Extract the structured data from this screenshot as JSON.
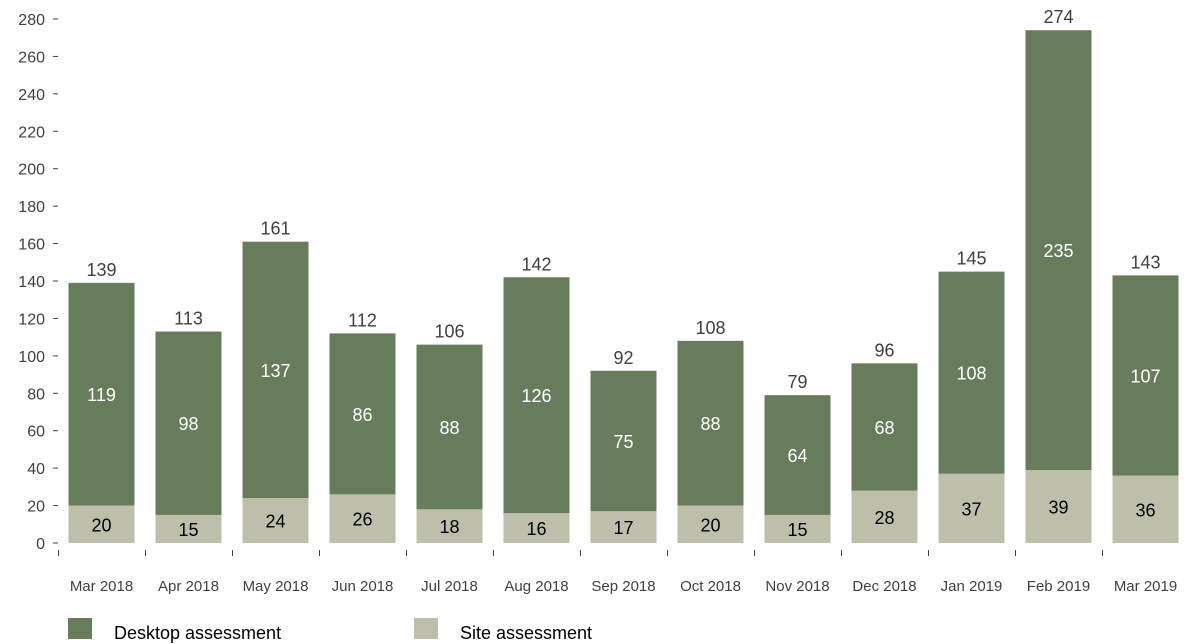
{
  "chart_data": {
    "type": "bar",
    "stacked": true,
    "categories": [
      "Mar 2018",
      "Apr 2018",
      "May 2018",
      "Jun 2018",
      "Jul 2018",
      "Aug 2018",
      "Sep 2018",
      "Oct 2018",
      "Nov 2018",
      "Dec 2018",
      "Jan 2019",
      "Feb 2019",
      "Mar 2019"
    ],
    "series": [
      {
        "name": "Site assessment",
        "color": "#bdbfaa",
        "values": [
          20,
          15,
          24,
          26,
          18,
          16,
          17,
          20,
          15,
          28,
          37,
          39,
          36
        ]
      },
      {
        "name": "Desktop assessment",
        "color": "#677c5b",
        "values": [
          119,
          98,
          137,
          86,
          88,
          126,
          75,
          88,
          64,
          68,
          108,
          235,
          107
        ]
      }
    ],
    "totals": [
      139,
      113,
      161,
      112,
      106,
      142,
      92,
      108,
      79,
      96,
      145,
      274,
      143
    ],
    "yticks": [
      0,
      20,
      40,
      60,
      80,
      100,
      120,
      140,
      160,
      180,
      200,
      220,
      240,
      260,
      280
    ],
    "ylim": [
      0,
      280
    ],
    "grid": false,
    "legend": {
      "position": "bottom-left",
      "items": [
        {
          "label": "Desktop assessment",
          "color": "#677c5b"
        },
        {
          "label": "Site assessment",
          "color": "#bdbfaa"
        }
      ]
    },
    "title": "",
    "xlabel": "",
    "ylabel": ""
  }
}
